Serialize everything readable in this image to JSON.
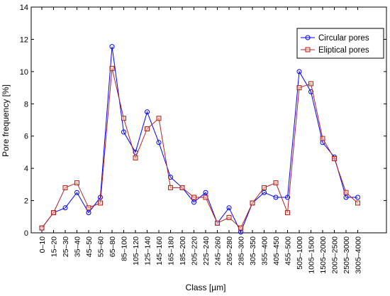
{
  "chart_data": {
    "type": "line",
    "xlabel": "Class [µm]",
    "ylabel": "Pore frequency [%]",
    "ylim": [
      0,
      14
    ],
    "yticks": [
      0,
      2,
      4,
      6,
      8,
      10,
      12,
      14
    ],
    "grid": false,
    "legend_position": "top-right",
    "categories": [
      "0–10",
      "15–20",
      "25–30",
      "35–40",
      "45–50",
      "55–60",
      "65–80",
      "85–100",
      "105–120",
      "125–140",
      "145–160",
      "165–180",
      "185–200",
      "205–220",
      "225–240",
      "245–260",
      "265–280",
      "285–300",
      "305–350",
      "355–400",
      "405–450",
      "455–500",
      "505–1000",
      "1005–1500",
      "1505–2000",
      "2005–2500",
      "2505–3000",
      "3005–4000"
    ],
    "series": [
      {
        "name": "Circular pores",
        "color": "#0000ff",
        "marker": "circle",
        "values": [
          0.3,
          1.25,
          1.55,
          2.5,
          1.25,
          2.2,
          11.55,
          6.25,
          5.0,
          7.5,
          5.6,
          3.45,
          2.8,
          1.9,
          2.5,
          0.6,
          1.55,
          0.05,
          1.85,
          2.5,
          2.2,
          2.2,
          10.0,
          8.75,
          5.6,
          4.7,
          2.2,
          2.2
        ]
      },
      {
        "name": "Eliptical pores",
        "color": "#b22222",
        "marker": "square",
        "values": [
          0.3,
          1.25,
          2.8,
          3.1,
          1.55,
          1.85,
          10.2,
          7.1,
          4.65,
          6.45,
          7.1,
          2.8,
          2.8,
          2.2,
          2.2,
          0.6,
          0.95,
          0.3,
          1.85,
          2.8,
          3.1,
          1.25,
          9.0,
          9.25,
          5.85,
          4.6,
          2.5,
          1.85
        ]
      }
    ]
  }
}
